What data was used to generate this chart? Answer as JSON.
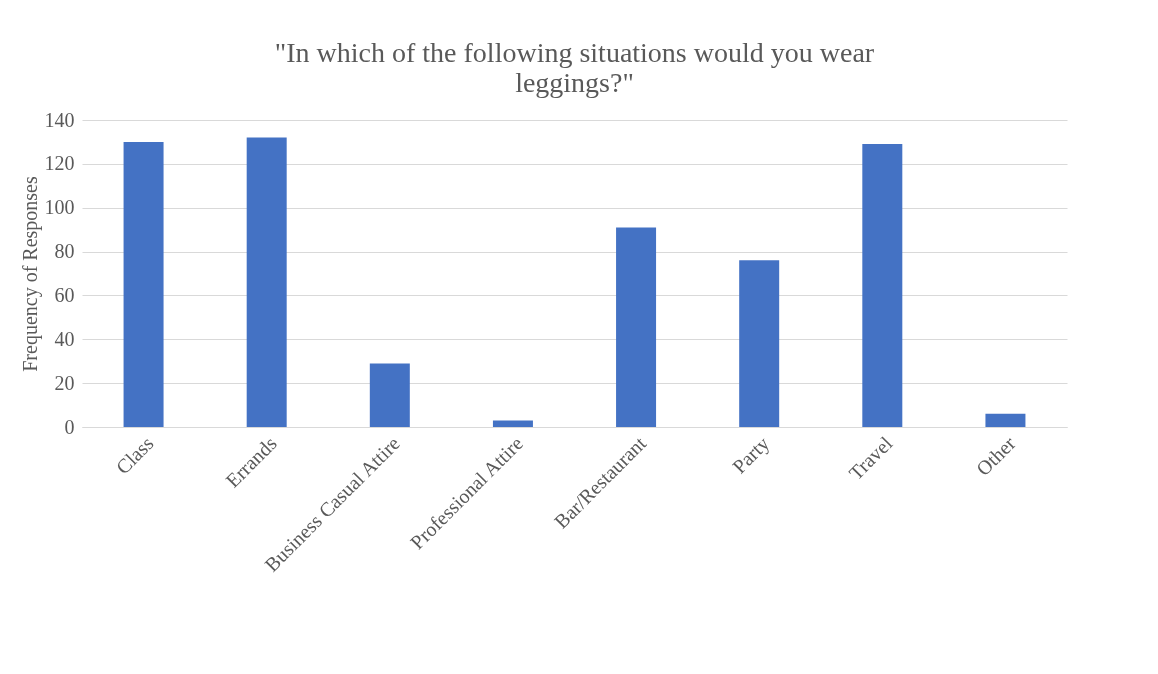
{
  "chart_data": {
    "type": "bar",
    "title": "\"In which of the following situations would you wear leggings?\"",
    "ylabel": "Frequency of Responses",
    "categories": [
      "Class",
      "Errands",
      "Business Casual Attire",
      "Professional Attire",
      "Bar/Restaurant",
      "Party",
      "Travel",
      "Other"
    ],
    "values": [
      130,
      132,
      29,
      3,
      91,
      76,
      129,
      6
    ],
    "color": "#4472c4",
    "ylim": [
      0,
      140
    ],
    "yticks": [
      0,
      20,
      40,
      60,
      80,
      100,
      120,
      140
    ],
    "grid": "y"
  }
}
